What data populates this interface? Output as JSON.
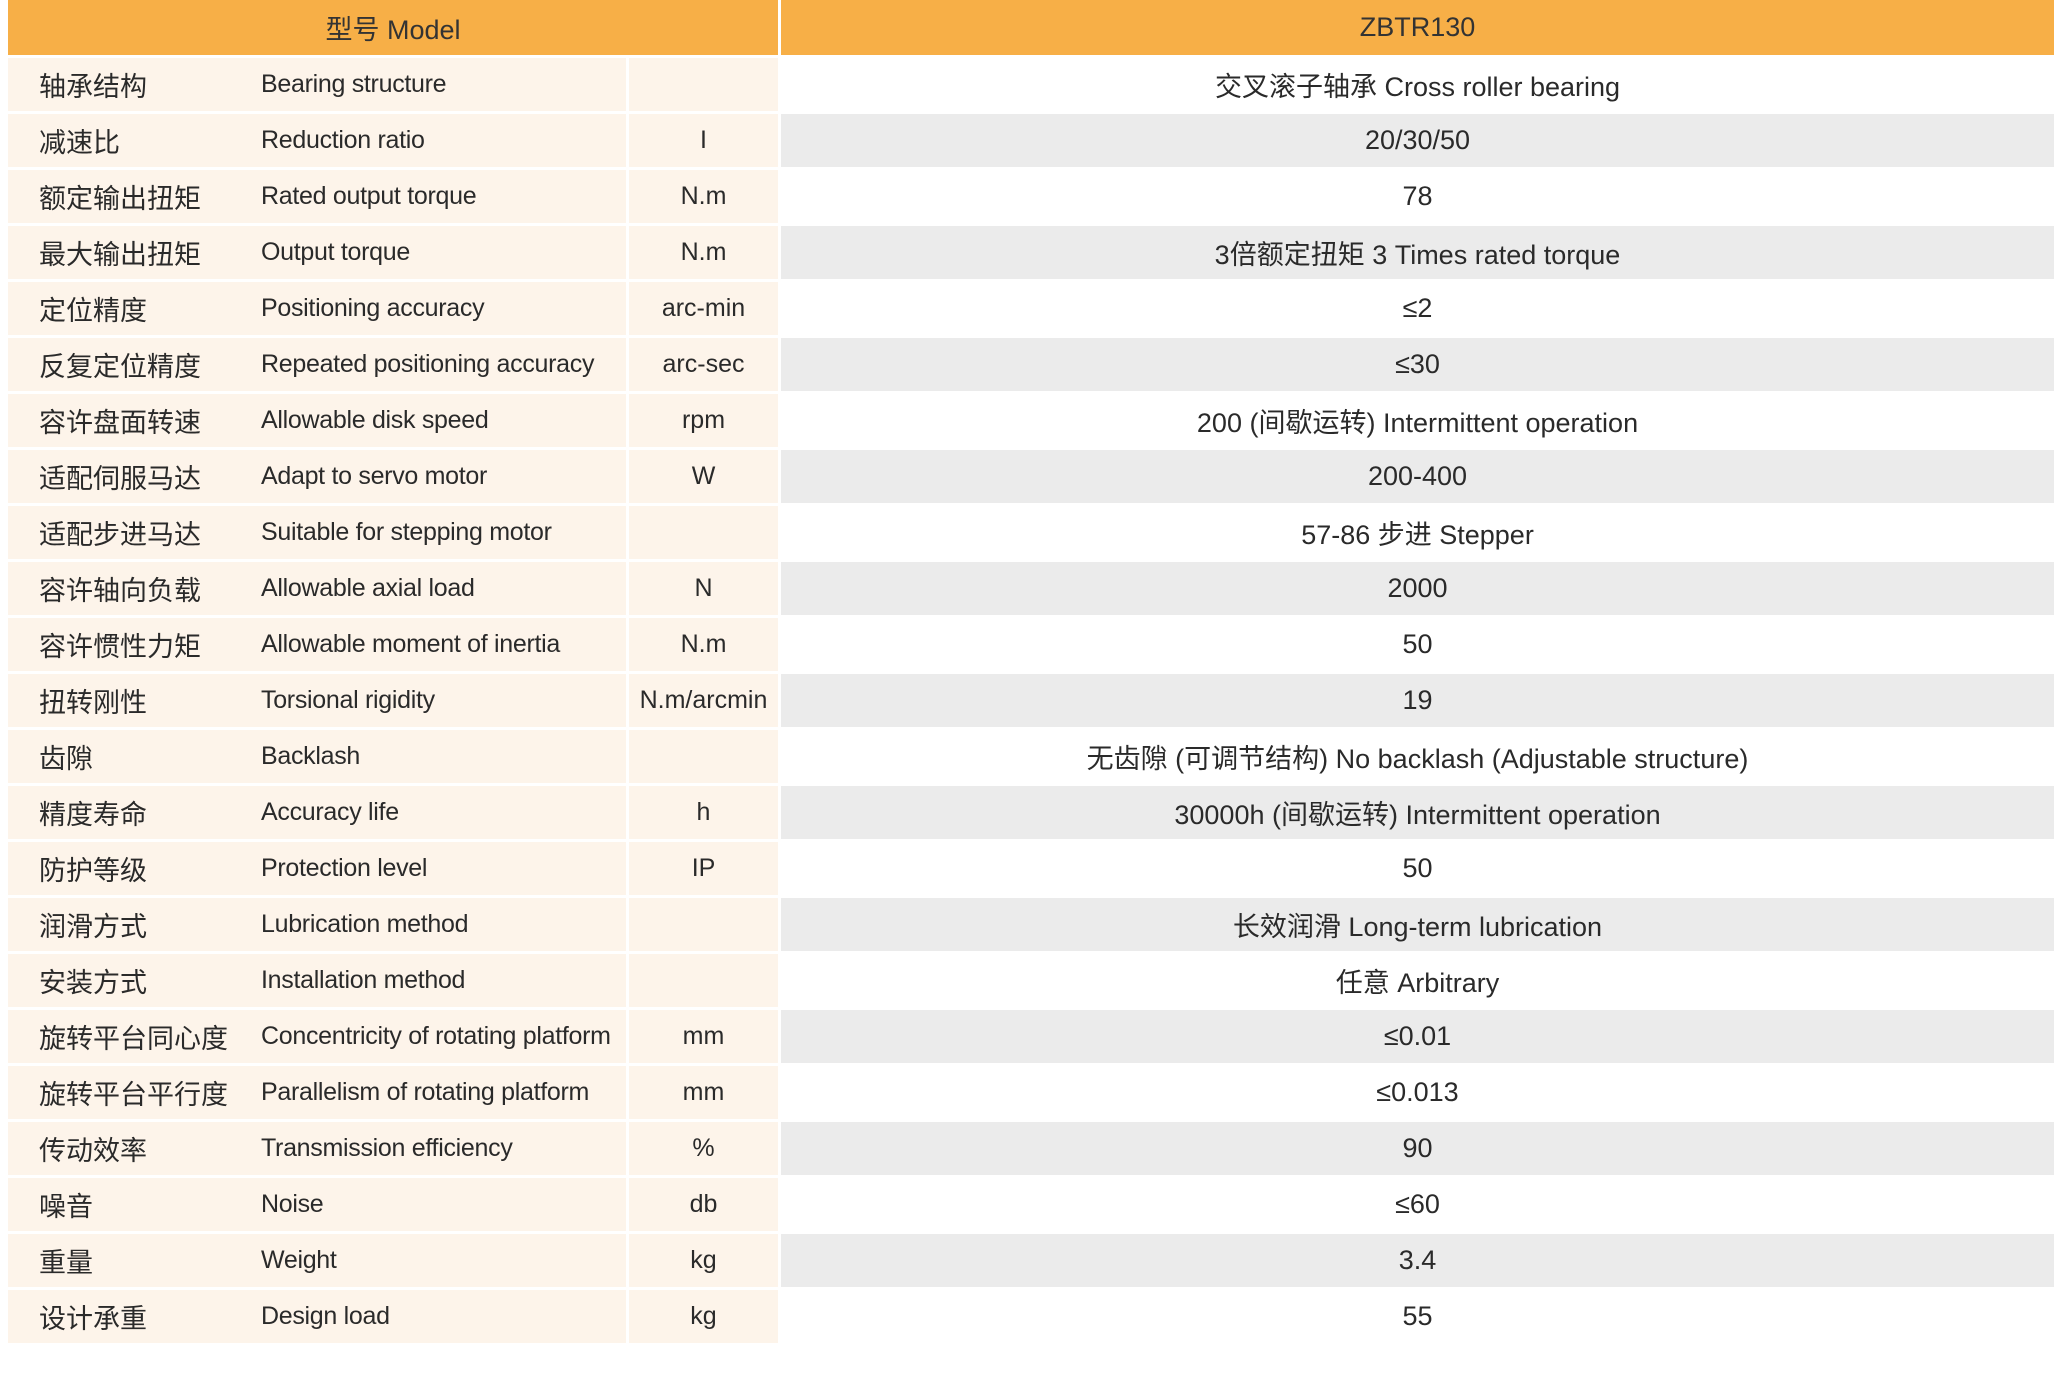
{
  "header": {
    "model_label": "型号 Model",
    "model_value": "ZBTR130"
  },
  "colors": {
    "header": "#F7AF47",
    "label_bg": "#FDF4EA",
    "alt_row": "#EBEBEB"
  },
  "rows": [
    {
      "cn": "轴承结构",
      "en": "Bearing structure",
      "unit": "",
      "value": "交叉滚子轴承 Cross roller bearing"
    },
    {
      "cn": "减速比",
      "en": "Reduction ratio",
      "unit": "I",
      "value": "20/30/50"
    },
    {
      "cn": "额定输出扭矩",
      "en": "Rated output torque",
      "unit": "N.m",
      "value": "78"
    },
    {
      "cn": "最大输出扭矩",
      "en": "Output torque",
      "unit": "N.m",
      "value": "3倍额定扭矩 3 Times rated torque"
    },
    {
      "cn": "定位精度",
      "en": "Positioning accuracy",
      "unit": "arc-min",
      "value": "≤2"
    },
    {
      "cn": "反复定位精度",
      "en": "Repeated positioning accuracy",
      "unit": "arc-sec",
      "value": "≤30"
    },
    {
      "cn": "容许盘面转速",
      "en": "Allowable disk speed",
      "unit": "rpm",
      "value": "200 (间歇运转) Intermittent operation"
    },
    {
      "cn": "适配伺服马达",
      "en": "Adapt to servo motor",
      "unit": "W",
      "value": "200-400"
    },
    {
      "cn": "适配步进马达",
      "en": "Suitable for stepping motor",
      "unit": "",
      "value": "57-86 步进 Stepper"
    },
    {
      "cn": "容许轴向负载",
      "en": "Allowable axial load",
      "unit": "N",
      "value": "2000"
    },
    {
      "cn": "容许惯性力矩",
      "en": "Allowable moment of inertia",
      "unit": "N.m",
      "value": "50"
    },
    {
      "cn": "扭转刚性",
      "en": "Torsional rigidity",
      "unit": "N.m/arcmin",
      "value": "19"
    },
    {
      "cn": "齿隙",
      "en": "Backlash",
      "unit": "",
      "value": "无齿隙 (可调节结构) No backlash (Adjustable structure)"
    },
    {
      "cn": "精度寿命",
      "en": "Accuracy life",
      "unit": "h",
      "value": "30000h (间歇运转) Intermittent operation"
    },
    {
      "cn": "防护等级",
      "en": "Protection level",
      "unit": "IP",
      "value": "50"
    },
    {
      "cn": "润滑方式",
      "en": "Lubrication method",
      "unit": "",
      "value": "长效润滑 Long-term lubrication"
    },
    {
      "cn": "安装方式",
      "en": "Installation method",
      "unit": "",
      "value": "任意 Arbitrary"
    },
    {
      "cn": "旋转平台同心度",
      "en": "Concentricity of rotating platform",
      "unit": "mm",
      "value": "≤0.01"
    },
    {
      "cn": "旋转平台平行度",
      "en": "Parallelism of rotating platform",
      "unit": "mm",
      "value": "≤0.013"
    },
    {
      "cn": "传动效率",
      "en": "Transmission efficiency",
      "unit": "%",
      "value": "90"
    },
    {
      "cn": "噪音",
      "en": "Noise",
      "unit": "db",
      "value": "≤60"
    },
    {
      "cn": "重量",
      "en": "Weight",
      "unit": "kg",
      "value": "3.4"
    },
    {
      "cn": "设计承重",
      "en": "Design load",
      "unit": "kg",
      "value": "55"
    }
  ]
}
